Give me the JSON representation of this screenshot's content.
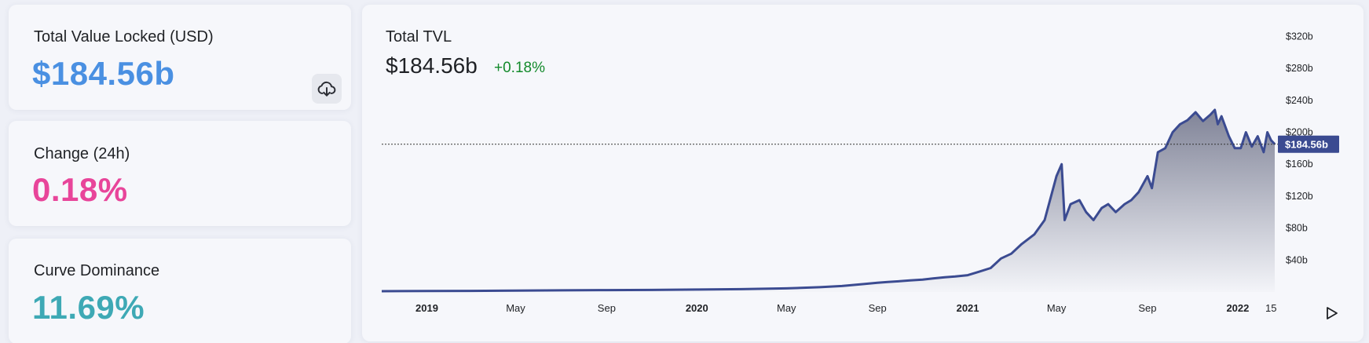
{
  "stats": {
    "tvl": {
      "label": "Total Value Locked (USD)",
      "value": "$184.56b",
      "color": "#4a90e2"
    },
    "change": {
      "label": "Change (24h)",
      "value": "0.18%",
      "color": "#e8459a"
    },
    "dominance": {
      "label": "Curve Dominance",
      "value": "11.69%",
      "color": "#3ea9b5"
    }
  },
  "icons": {
    "download": "cloud-download-icon",
    "play": "play-icon"
  },
  "chart_data": {
    "type": "area",
    "title": "Total TVL",
    "current_value": "$184.56b",
    "change": "+0.18%",
    "change_color": "#138a2b",
    "line_color": "#3b4b91",
    "price_tag": "$184.56b",
    "xlabel": "",
    "ylabel": "",
    "ylim": [
      0,
      340
    ],
    "y_unit": "billion USD",
    "y_ticks": [
      "$40b",
      "$80b",
      "$120b",
      "$160b",
      "$200b",
      "$240b",
      "$280b",
      "$320b"
    ],
    "y_tick_values": [
      40,
      80,
      120,
      160,
      200,
      240,
      280,
      320
    ],
    "x_ticks": [
      {
        "label": "2019",
        "date": "2019-01-01",
        "bold": true
      },
      {
        "label": "May",
        "date": "2019-05-01",
        "bold": false
      },
      {
        "label": "Sep",
        "date": "2019-09-01",
        "bold": false
      },
      {
        "label": "2020",
        "date": "2020-01-01",
        "bold": true
      },
      {
        "label": "May",
        "date": "2020-05-01",
        "bold": false
      },
      {
        "label": "Sep",
        "date": "2020-09-01",
        "bold": false
      },
      {
        "label": "2021",
        "date": "2021-01-01",
        "bold": true
      },
      {
        "label": "May",
        "date": "2021-05-01",
        "bold": false
      },
      {
        "label": "Sep",
        "date": "2021-09-01",
        "bold": false
      },
      {
        "label": "2022",
        "date": "2022-01-01",
        "bold": true
      },
      {
        "label": "15",
        "date": "2022-02-15",
        "bold": false
      }
    ],
    "series": [
      {
        "x": [
          "2018-11-01",
          "2019-01-01",
          "2019-03-01",
          "2019-05-01",
          "2019-07-01",
          "2019-09-01",
          "2019-11-01",
          "2020-01-01",
          "2020-03-01",
          "2020-05-01",
          "2020-06-15",
          "2020-07-15",
          "2020-08-15",
          "2020-09-01",
          "2020-09-15",
          "2020-10-01",
          "2020-10-15",
          "2020-11-01",
          "2020-11-15",
          "2020-12-01",
          "2020-12-15",
          "2021-01-01",
          "2021-01-15",
          "2021-02-01",
          "2021-02-15",
          "2021-03-01",
          "2021-03-15",
          "2021-04-01",
          "2021-04-15",
          "2021-05-01",
          "2021-05-08",
          "2021-05-12",
          "2021-05-20",
          "2021-06-01",
          "2021-06-10",
          "2021-06-20",
          "2021-07-01",
          "2021-07-10",
          "2021-07-20",
          "2021-08-01",
          "2021-08-10",
          "2021-08-20",
          "2021-09-01",
          "2021-09-07",
          "2021-09-15",
          "2021-09-25",
          "2021-10-05",
          "2021-10-15",
          "2021-10-25",
          "2021-11-05",
          "2021-11-15",
          "2021-11-25",
          "2021-12-01",
          "2021-12-05",
          "2021-12-10",
          "2021-12-20",
          "2021-12-28",
          "2022-01-05",
          "2022-01-12",
          "2022-01-20",
          "2022-01-28",
          "2022-02-05",
          "2022-02-10",
          "2022-02-15",
          "2022-02-20"
        ],
        "y": [
          1,
          1.2,
          1.4,
          1.8,
          2.1,
          2.4,
          2.6,
          3,
          3.5,
          4.5,
          6,
          7.5,
          10,
          11.5,
          12.5,
          13.5,
          14.5,
          15.5,
          17,
          18.5,
          19.5,
          21,
          25,
          30,
          42,
          48,
          60,
          72,
          90,
          145,
          160,
          90,
          110,
          115,
          100,
          90,
          105,
          110,
          100,
          110,
          115,
          125,
          145,
          130,
          175,
          180,
          200,
          210,
          215,
          225,
          214,
          222,
          228,
          210,
          220,
          195,
          180,
          180,
          200,
          182,
          195,
          175,
          200,
          190,
          185
        ]
      }
    ]
  }
}
